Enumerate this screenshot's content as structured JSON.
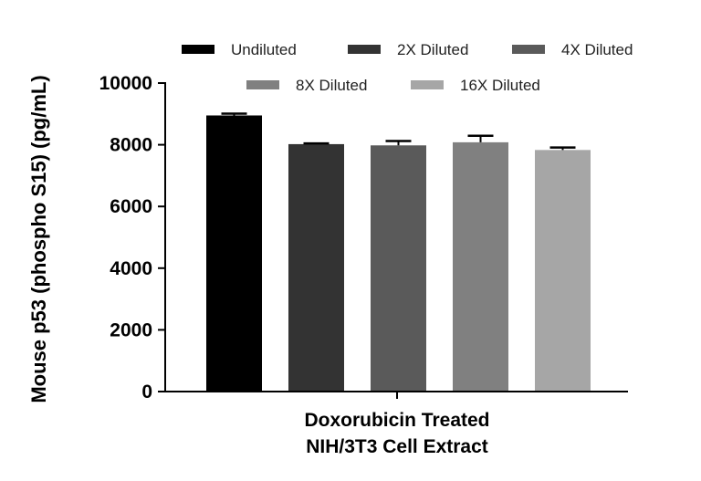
{
  "chart_data": {
    "type": "bar",
    "categories": [
      "Doxorubicin Treated NIH/3T3 Cell Extract"
    ],
    "xlabel_lines": [
      "Doxorubicin Treated",
      "NIH/3T3 Cell Extract"
    ],
    "ylabel": "Mouse p53 (phospho S15) (pg/mL)",
    "ylim": [
      0,
      10000
    ],
    "yticks": [
      "0",
      "2000",
      "4000",
      "6000",
      "8000",
      "10000"
    ],
    "grid": false,
    "legend_position": "top",
    "series": [
      {
        "name": "Undiluted",
        "value": 8950,
        "error": 60,
        "color": "#000000"
      },
      {
        "name": "2X Diluted",
        "value": 8020,
        "error": 25,
        "color": "#333333"
      },
      {
        "name": "4X Diluted",
        "value": 7980,
        "error": 140,
        "color": "#5a5a5a"
      },
      {
        "name": "8X Diluted",
        "value": 8080,
        "error": 210,
        "color": "#808080"
      },
      {
        "name": "16X Diluted",
        "value": 7830,
        "error": 80,
        "color": "#a6a6a6"
      }
    ]
  }
}
